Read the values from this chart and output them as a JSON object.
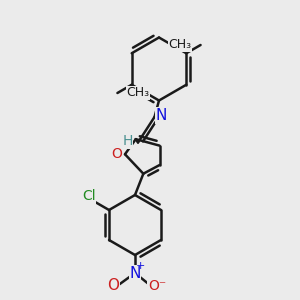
{
  "bg_color": "#ebebeb",
  "bond_color": "#1a1a1a",
  "bond_width": 1.8,
  "N_color": "#1010dd",
  "O_color": "#cc2020",
  "Cl_color": "#228b22",
  "H_color": "#4a9090",
  "font_size": 10,
  "fig_size": [
    3.0,
    3.0
  ],
  "dpi": 100,
  "xlim": [
    0.0,
    10.0
  ],
  "ylim": [
    0.5,
    10.5
  ]
}
